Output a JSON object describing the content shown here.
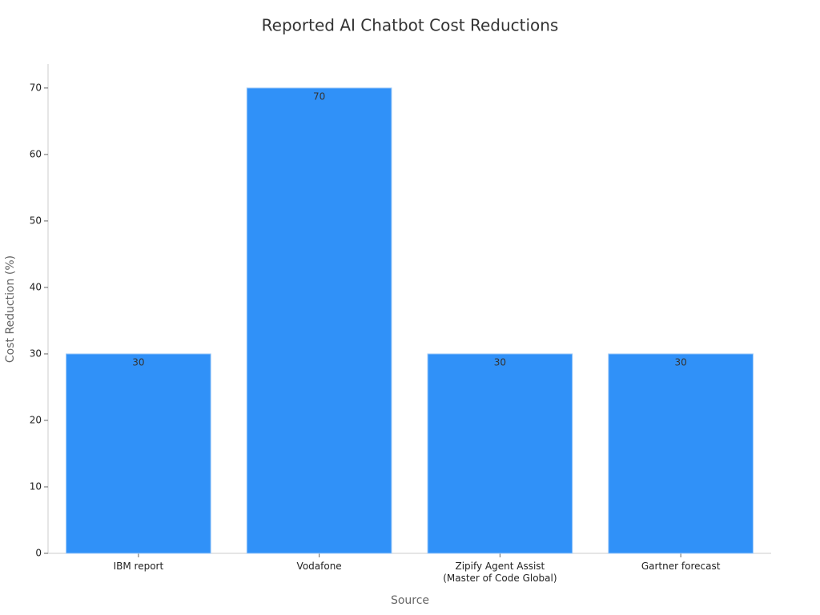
{
  "chart_data": {
    "type": "bar",
    "title": "Reported AI Chatbot Cost Reductions",
    "x_label": "Source",
    "y_label": "Cost Reduction (%)",
    "categories": [
      "IBM report",
      "Vodafone",
      "Zipify Agent Assist\n(Master of Code Global)",
      "Gartner forecast"
    ],
    "values": [
      30,
      70,
      30,
      30
    ],
    "color": "#3091f8",
    "ylim": [
      0,
      73.6
    ],
    "yticks": [
      0,
      10,
      20,
      30,
      40,
      50,
      60,
      70
    ],
    "grid": false
  }
}
